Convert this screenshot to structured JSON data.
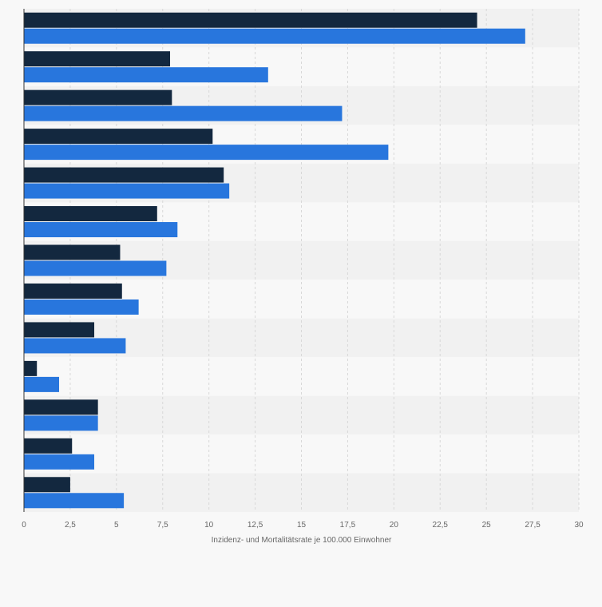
{
  "chart_data": {
    "type": "bar",
    "orientation": "horizontal",
    "categories": [
      "",
      "",
      "",
      "",
      "",
      "",
      "",
      "",
      "",
      "",
      "",
      "",
      ""
    ],
    "series": [
      {
        "color": "#13283f",
        "values": [
          24.5,
          7.9,
          8.0,
          10.2,
          10.8,
          7.2,
          5.2,
          5.3,
          3.8,
          0.7,
          4.0,
          2.6,
          2.5
        ]
      },
      {
        "color": "#2876dd",
        "values": [
          27.1,
          13.2,
          17.2,
          19.7,
          11.1,
          8.3,
          7.7,
          6.2,
          5.5,
          1.9,
          4.0,
          3.8,
          5.4
        ]
      }
    ],
    "xlim": [
      0,
      30
    ],
    "xticks": [
      0,
      2.5,
      5,
      7.5,
      10,
      12.5,
      15,
      17.5,
      20,
      22.5,
      25,
      27.5,
      30
    ],
    "xtick_labels": [
      "0",
      "2,5",
      "5",
      "7,5",
      "10",
      "12,5",
      "15",
      "17,5",
      "20",
      "22,5",
      "25",
      "27,5",
      "30"
    ],
    "xlabel": "Inzidenz- und Mortalitätsrate je 100.000 Einwohner",
    "ylabel": "",
    "title": "",
    "grid": true,
    "legend": "none"
  }
}
